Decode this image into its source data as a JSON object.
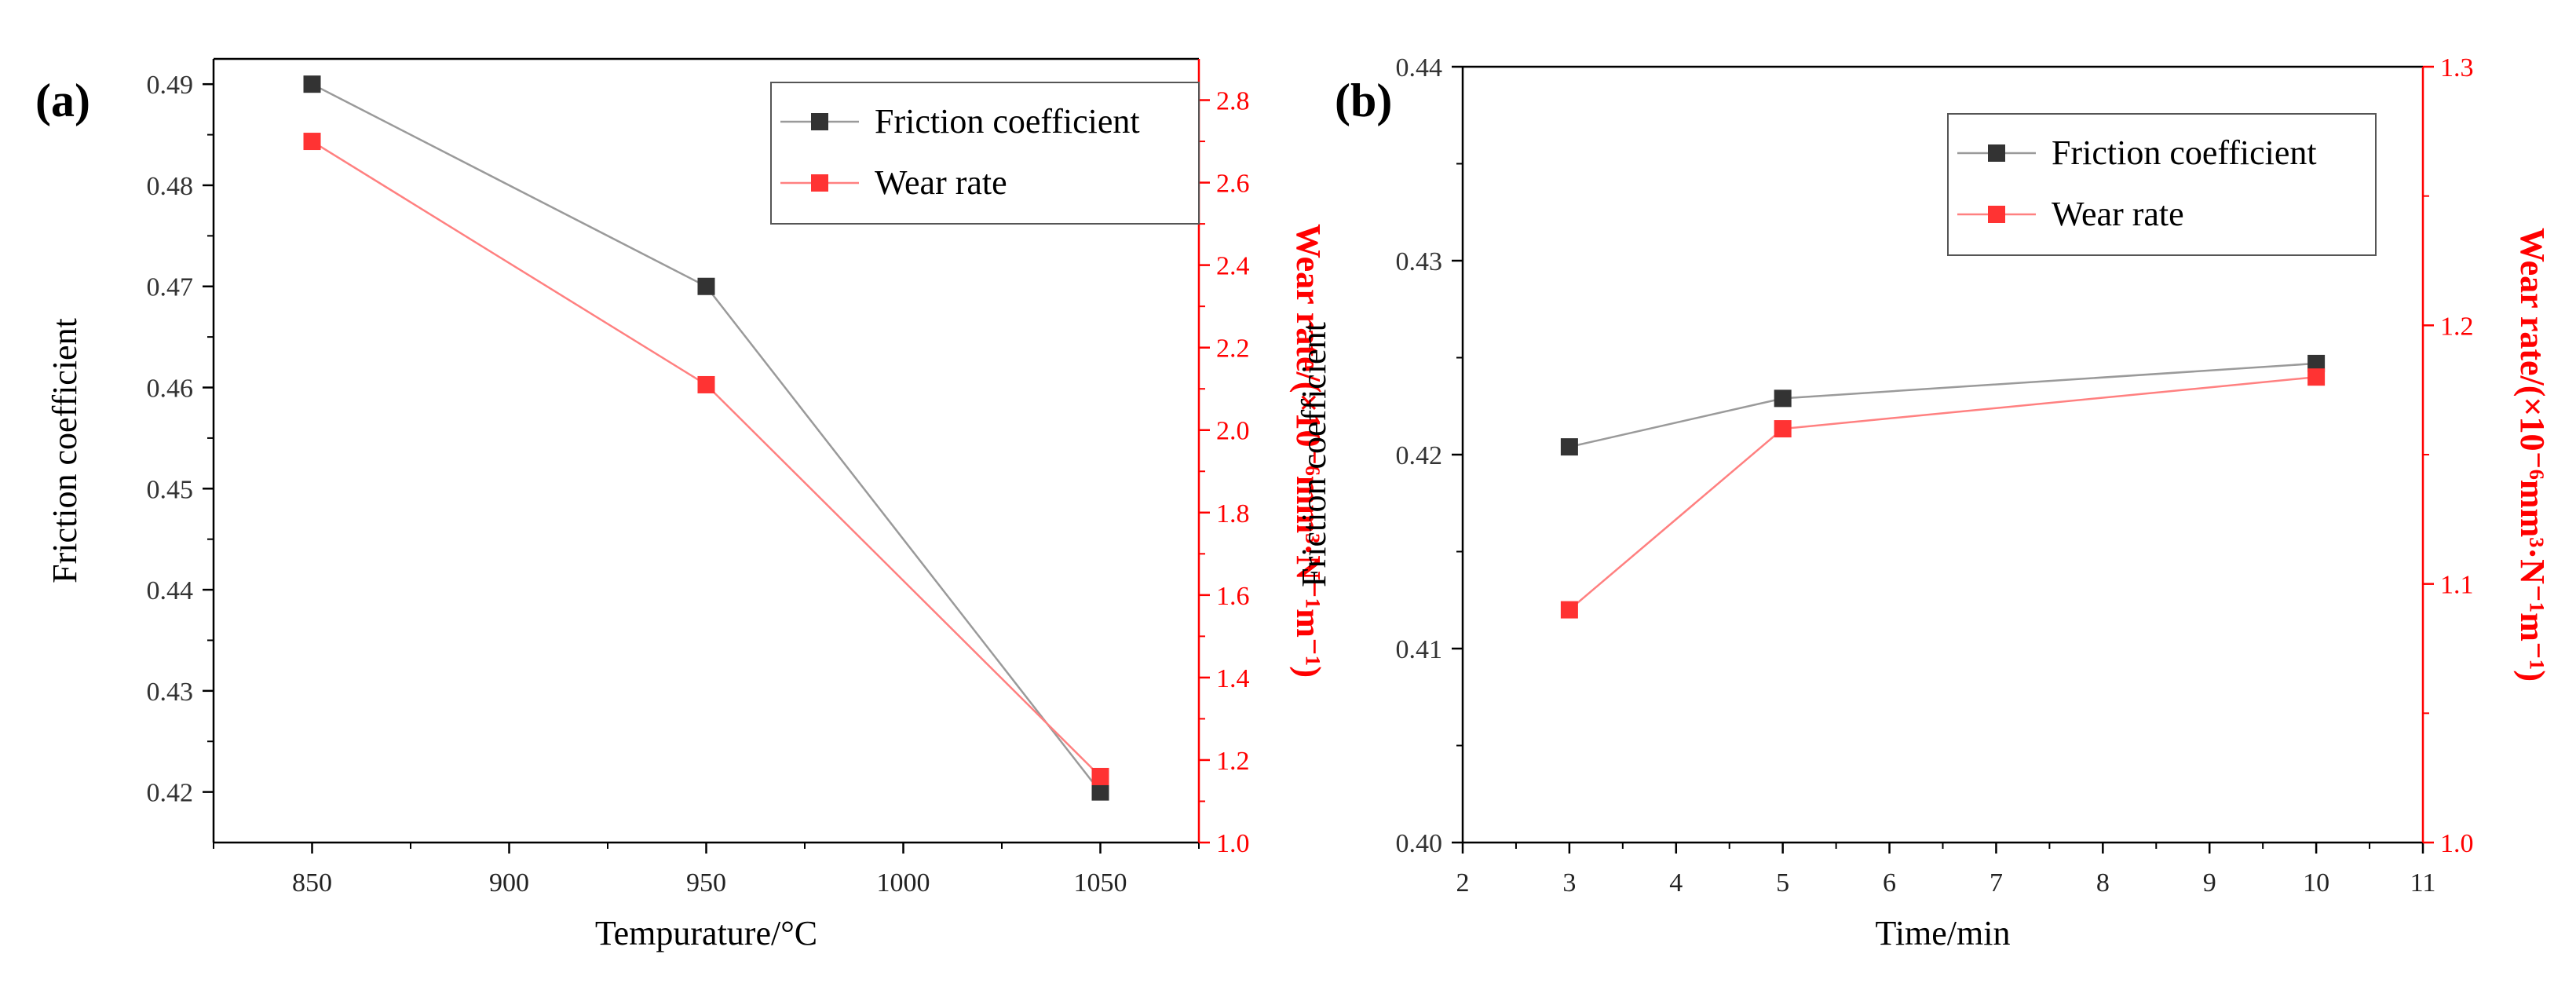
{
  "figure": {
    "colors": {
      "axis": "#000000",
      "friction": "#333333",
      "friction_line": "#9a9a9a",
      "wear": "#ff3333",
      "wear_line": "#ff8080",
      "wear_axis": "#ff0000",
      "legend_border": "#555555"
    }
  },
  "chart_data": [
    {
      "type": "line",
      "panel_label": "(a)",
      "xlabel": "Tempurature/°C",
      "ylabel": "Friction coefficient",
      "y2label": "Wear rate/(×10⁻⁶mm³·N⁻¹m⁻¹)",
      "xlim": [
        825,
        1075
      ],
      "ylim": [
        0.415,
        0.4925
      ],
      "y2lim": [
        1.0,
        2.9
      ],
      "xticks": [
        850,
        900,
        950,
        1000,
        1050
      ],
      "xtick_labels": [
        "850",
        "900",
        "950",
        "1000",
        "1050"
      ],
      "yticks": [
        0.42,
        0.43,
        0.44,
        0.45,
        0.46,
        0.47,
        0.48,
        0.49
      ],
      "ytick_labels": [
        "0.42",
        "0.43",
        "0.44",
        "0.45",
        "0.46",
        "0.47",
        "0.48",
        "0.49"
      ],
      "y2ticks": [
        1.0,
        1.2,
        1.4,
        1.6,
        1.8,
        2.0,
        2.2,
        2.4,
        2.6,
        2.8
      ],
      "y2tick_labels": [
        "1.0",
        "1.2",
        "1.4",
        "1.6",
        "1.8",
        "2.0",
        "2.2",
        "2.4",
        "2.6",
        "2.8"
      ],
      "legend": [
        "Friction coefficient",
        "Wear rate"
      ],
      "legend_position": "top-right",
      "series": [
        {
          "name": "Friction coefficient",
          "axis": "left",
          "x": [
            850,
            950,
            1050
          ],
          "values": [
            0.49,
            0.47,
            0.42
          ]
        },
        {
          "name": "Wear rate",
          "axis": "right",
          "x": [
            850,
            950,
            1050
          ],
          "values": [
            2.7,
            2.11,
            1.16
          ]
        }
      ]
    },
    {
      "type": "line",
      "panel_label": "(b)",
      "xlabel": "Time/min",
      "ylabel": "Friction coefficient",
      "y2label": "Wear rate/(×10⁻⁶mm³·N⁻¹m⁻¹)",
      "xlim": [
        2,
        11
      ],
      "ylim": [
        0.4,
        0.44
      ],
      "y2lim": [
        1.0,
        1.3
      ],
      "xticks": [
        2,
        3,
        4,
        5,
        6,
        7,
        8,
        9,
        10,
        11
      ],
      "xtick_labels": [
        "2",
        "3",
        "4",
        "5",
        "6",
        "7",
        "8",
        "9",
        "10",
        "11"
      ],
      "yticks": [
        0.4,
        0.41,
        0.42,
        0.43,
        0.44
      ],
      "ytick_labels": [
        "0.40",
        "0.41",
        "0.42",
        "0.43",
        "0.44"
      ],
      "y2ticks": [
        1.0,
        1.1,
        1.2,
        1.3
      ],
      "y2tick_labels": [
        "1.0",
        "1.1",
        "1.2",
        "1.3"
      ],
      "legend": [
        "Friction coefficient",
        "Wear rate"
      ],
      "legend_position": "top-right",
      "series": [
        {
          "name": "Friction coefficient",
          "axis": "left",
          "x": [
            3,
            5,
            10
          ],
          "values": [
            0.4204,
            0.4229,
            0.4247
          ]
        },
        {
          "name": "Wear rate",
          "axis": "right",
          "x": [
            3,
            5,
            10
          ],
          "values": [
            1.09,
            1.16,
            1.18
          ]
        }
      ]
    }
  ]
}
